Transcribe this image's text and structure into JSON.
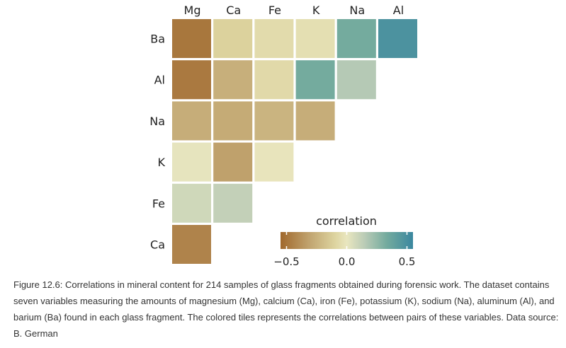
{
  "chart_data": {
    "type": "heatmap",
    "columns": [
      "Mg",
      "Ca",
      "Fe",
      "K",
      "Na",
      "Al"
    ],
    "rows": [
      "Ba",
      "Al",
      "Na",
      "K",
      "Fe",
      "Ca"
    ],
    "cells": [
      {
        "row": "Ba",
        "col": "Mg",
        "value": -0.49
      },
      {
        "row": "Ba",
        "col": "Ca",
        "value": -0.11
      },
      {
        "row": "Ba",
        "col": "Fe",
        "value": -0.06
      },
      {
        "row": "Ba",
        "col": "K",
        "value": -0.04
      },
      {
        "row": "Ba",
        "col": "Na",
        "value": 0.33
      },
      {
        "row": "Ba",
        "col": "Al",
        "value": 0.48
      },
      {
        "row": "Al",
        "col": "Mg",
        "value": -0.48
      },
      {
        "row": "Al",
        "col": "Ca",
        "value": -0.26
      },
      {
        "row": "Al",
        "col": "Fe",
        "value": -0.07
      },
      {
        "row": "Al",
        "col": "K",
        "value": 0.33
      },
      {
        "row": "Al",
        "col": "Na",
        "value": 0.16
      },
      {
        "row": "Na",
        "col": "Mg",
        "value": -0.27
      },
      {
        "row": "Na",
        "col": "Ca",
        "value": -0.28
      },
      {
        "row": "Na",
        "col": "Fe",
        "value": -0.24
      },
      {
        "row": "Na",
        "col": "K",
        "value": -0.27
      },
      {
        "row": "K",
        "col": "Mg",
        "value": 0.01
      },
      {
        "row": "K",
        "col": "Ca",
        "value": -0.32
      },
      {
        "row": "K",
        "col": "Fe",
        "value": -0.01
      },
      {
        "row": "Fe",
        "col": "Mg",
        "value": 0.08
      },
      {
        "row": "Fe",
        "col": "Ca",
        "value": 0.12
      },
      {
        "row": "Ca",
        "col": "Mg",
        "value": -0.44
      }
    ],
    "legend": {
      "title": "correlation",
      "ticks": [
        -0.5,
        0.0,
        0.5
      ],
      "tick_labels": [
        "−0.5",
        "0.0",
        "0.5"
      ],
      "range": [
        -0.55,
        0.55
      ],
      "placement": "bottom-right"
    },
    "colors": {
      "negative": "#a36c33",
      "neutral": "#e8e5bd",
      "positive": "#3b8aa1",
      "stops": [
        {
          "v": -0.55,
          "c": "#a0682c"
        },
        {
          "v": -0.3,
          "c": "#c2a672"
        },
        {
          "v": -0.1,
          "c": "#ddd49f"
        },
        {
          "v": 0.0,
          "c": "#e9e6bf"
        },
        {
          "v": 0.15,
          "c": "#b9cbb6"
        },
        {
          "v": 0.33,
          "c": "#74ab9e"
        },
        {
          "v": 0.55,
          "c": "#3a879f"
        }
      ]
    }
  },
  "caption": "Figure 12.6: Correlations in mineral content for 214 samples of glass fragments obtained during forensic work. The dataset contains seven variables measuring the amounts of magnesium (Mg), calcium (Ca), iron (Fe), potassium (K), sodium (Na), aluminum (Al), and barium (Ba) found in each glass fragment. The colored tiles represents the correlations between pairs of these variables. Data source: B. German"
}
